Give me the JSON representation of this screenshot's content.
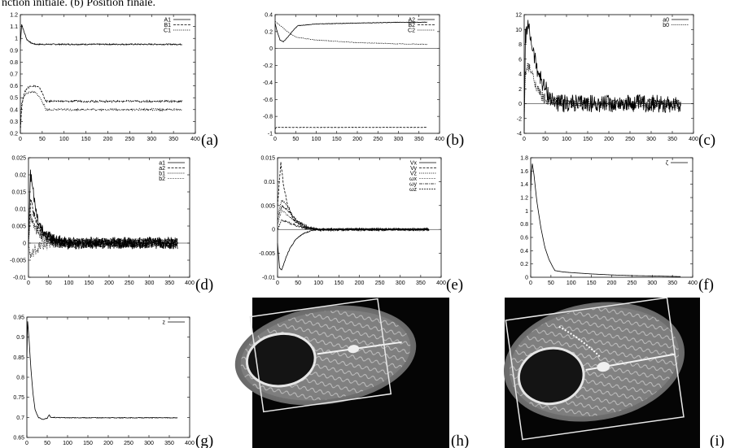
{
  "caption": "nction initiale. (b) Position finale.",
  "chart_data": [
    {
      "panel": "(a)",
      "type": "line",
      "xlim": [
        0,
        400
      ],
      "ylim": [
        0.2,
        1.2
      ],
      "xticks": [
        "0",
        "50",
        "100",
        "150",
        "200",
        "250",
        "300",
        "350",
        "400"
      ],
      "yticks": [
        "0.2",
        "0.3",
        "0.4",
        "0.5",
        "0.6",
        "0.7",
        "0.8",
        "0.9",
        "1",
        "1.1",
        "1.2"
      ],
      "legend": "top-right",
      "zero_line": false,
      "series": [
        {
          "name": "A1",
          "dash": "",
          "points": [
            [
              0,
              0.95
            ],
            [
              3,
              1.12
            ],
            [
              8,
              1.06
            ],
            [
              15,
              0.99
            ],
            [
              25,
              0.96
            ],
            [
              35,
              0.95
            ],
            [
              50,
              0.95
            ],
            [
              60,
              0.95
            ],
            [
              100,
              0.95
            ],
            [
              200,
              0.95
            ],
            [
              300,
              0.95
            ],
            [
              370,
              0.95
            ]
          ],
          "noise": 0.005
        },
        {
          "name": "B1",
          "dash": "3,1.5",
          "points": [
            [
              0,
              0.22
            ],
            [
              3,
              0.42
            ],
            [
              8,
              0.53
            ],
            [
              15,
              0.58
            ],
            [
              25,
              0.6
            ],
            [
              35,
              0.6
            ],
            [
              45,
              0.58
            ],
            [
              55,
              0.5
            ],
            [
              58,
              0.47
            ],
            [
              100,
              0.47
            ],
            [
              200,
              0.47
            ],
            [
              300,
              0.47
            ],
            [
              370,
              0.47
            ]
          ],
          "noise": 0.008
        },
        {
          "name": "C1",
          "dash": "1.2,1.2",
          "points": [
            [
              0,
              0.25
            ],
            [
              3,
              0.45
            ],
            [
              8,
              0.51
            ],
            [
              15,
              0.54
            ],
            [
              25,
              0.55
            ],
            [
              35,
              0.54
            ],
            [
              45,
              0.5
            ],
            [
              55,
              0.43
            ],
            [
              58,
              0.4
            ],
            [
              100,
              0.4
            ],
            [
              200,
              0.4
            ],
            [
              300,
              0.4
            ],
            [
              370,
              0.4
            ]
          ],
          "noise": 0.008
        }
      ]
    },
    {
      "panel": "(b)",
      "type": "line",
      "xlim": [
        0,
        400
      ],
      "ylim": [
        -1,
        0.4
      ],
      "xticks": [
        "0",
        "50",
        "100",
        "150",
        "200",
        "250",
        "300",
        "350",
        "400"
      ],
      "yticks": [
        "-1",
        "-0.8",
        "-0.6",
        "-0.4",
        "-0.2",
        "0",
        "0.2",
        "0.4"
      ],
      "legend": "top-right",
      "zero_line": true,
      "series": [
        {
          "name": "A2",
          "dash": "",
          "points": [
            [
              0,
              0.3
            ],
            [
              5,
              0.2
            ],
            [
              12,
              0.1
            ],
            [
              20,
              0.08
            ],
            [
              30,
              0.13
            ],
            [
              45,
              0.22
            ],
            [
              55,
              0.27
            ],
            [
              100,
              0.29
            ],
            [
              200,
              0.3
            ],
            [
              300,
              0.31
            ],
            [
              370,
              0.31
            ]
          ],
          "noise": 0.003
        },
        {
          "name": "B2",
          "dash": "3,1.5",
          "points": [
            [
              0,
              -0.95
            ],
            [
              3,
              -0.93
            ],
            [
              50,
              -0.93
            ],
            [
              100,
              -0.93
            ],
            [
              200,
              -0.93
            ],
            [
              300,
              -0.93
            ],
            [
              370,
              -0.93
            ]
          ],
          "noise": 0.002
        },
        {
          "name": "C2",
          "dash": "1.2,1.2",
          "points": [
            [
              0,
              0.32
            ],
            [
              5,
              0.3
            ],
            [
              15,
              0.26
            ],
            [
              30,
              0.2
            ],
            [
              45,
              0.15
            ],
            [
              55,
              0.13
            ],
            [
              100,
              0.1
            ],
            [
              200,
              0.07
            ],
            [
              300,
              0.055
            ],
            [
              370,
              0.05
            ]
          ],
          "noise": 0.003
        }
      ]
    },
    {
      "panel": "(c)",
      "type": "line",
      "xlim": [
        0,
        400
      ],
      "ylim": [
        -4,
        12
      ],
      "xticks": [
        "0",
        "50",
        "100",
        "150",
        "200",
        "250",
        "300",
        "350",
        "400"
      ],
      "yticks": [
        "-4",
        "-2",
        "0",
        "2",
        "4",
        "6",
        "8",
        "10",
        "12"
      ],
      "legend": "top-right",
      "zero_line": true,
      "series": [
        {
          "name": "a0",
          "dash": "",
          "points": [
            [
              0,
              -3
            ],
            [
              3,
              9
            ],
            [
              8,
              10.5
            ],
            [
              15,
              9
            ],
            [
              25,
              6
            ],
            [
              35,
              4
            ],
            [
              45,
              2.5
            ],
            [
              55,
              1.5
            ],
            [
              65,
              0.5
            ],
            [
              80,
              0.1
            ],
            [
              100,
              0
            ],
            [
              200,
              0
            ],
            [
              300,
              0
            ],
            [
              370,
              0
            ]
          ],
          "noise": 1.2
        },
        {
          "name": "b0",
          "dash": "1.2,1.2",
          "points": [
            [
              0,
              -2
            ],
            [
              3,
              4
            ],
            [
              8,
              5
            ],
            [
              15,
              4.5
            ],
            [
              25,
              3
            ],
            [
              35,
              1.5
            ],
            [
              45,
              0.8
            ],
            [
              60,
              0.3
            ],
            [
              100,
              0
            ],
            [
              200,
              0
            ],
            [
              370,
              0
            ]
          ],
          "noise": 0.7
        }
      ]
    },
    {
      "panel": "(d)",
      "type": "line",
      "xlim": [
        0,
        400
      ],
      "ylim": [
        -0.01,
        0.025
      ],
      "xticks": [
        "0",
        "50",
        "100",
        "150",
        "200",
        "250",
        "300",
        "350",
        "400"
      ],
      "yticks": [
        "-0.01",
        "-0.005",
        "0",
        "0.005",
        "0.01",
        "0.015",
        "0.02",
        "0.025"
      ],
      "legend": "top-right",
      "zero_line": true,
      "series": [
        {
          "name": "a1",
          "dash": "",
          "points": [
            [
              0,
              0
            ],
            [
              5,
              0.02
            ],
            [
              10,
              0.018
            ],
            [
              15,
              0.012
            ],
            [
              25,
              0.006
            ],
            [
              40,
              0.003
            ],
            [
              60,
              0.001
            ],
            [
              100,
              0
            ],
            [
              200,
              0
            ],
            [
              370,
              0
            ]
          ],
          "noise": 0.0018
        },
        {
          "name": "a2",
          "dash": "3,1.5",
          "points": [
            [
              0,
              0
            ],
            [
              5,
              0.012
            ],
            [
              15,
              0.008
            ],
            [
              30,
              0.003
            ],
            [
              60,
              0.001
            ],
            [
              100,
              0
            ],
            [
              370,
              0
            ]
          ],
          "noise": 0.0015
        },
        {
          "name": "b1",
          "dash": "1.2,1.2",
          "points": [
            [
              0,
              0
            ],
            [
              5,
              0.008
            ],
            [
              15,
              0.005
            ],
            [
              30,
              0.002
            ],
            [
              60,
              0
            ],
            [
              370,
              0
            ]
          ],
          "noise": 0.0015
        },
        {
          "name": "b2",
          "dash": "0.6,0.9",
          "points": [
            [
              0,
              0
            ],
            [
              5,
              -0.004
            ],
            [
              15,
              -0.002
            ],
            [
              30,
              -0.001
            ],
            [
              60,
              0
            ],
            [
              370,
              0
            ]
          ],
          "noise": 0.0015
        }
      ]
    },
    {
      "panel": "(e)",
      "type": "line",
      "xlim": [
        0,
        400
      ],
      "ylim": [
        -0.01,
        0.015
      ],
      "xticks": [
        "0",
        "50",
        "100",
        "150",
        "200",
        "250",
        "300",
        "350",
        "400"
      ],
      "yticks": [
        "-0.01",
        "-0.005",
        "0",
        "0.005",
        "0.01",
        "0.015"
      ],
      "legend": "top-right",
      "zero_line": true,
      "series": [
        {
          "name": "Vx",
          "dash": "",
          "points": [
            [
              0,
              -0.003
            ],
            [
              5,
              -0.008
            ],
            [
              10,
              -0.0085
            ],
            [
              20,
              -0.006
            ],
            [
              30,
              -0.004
            ],
            [
              45,
              -0.002
            ],
            [
              60,
              -0.001
            ],
            [
              80,
              -0.0003
            ],
            [
              100,
              0
            ],
            [
              370,
              0
            ]
          ],
          "noise": 0.0001
        },
        {
          "name": "Vy",
          "dash": "3,1.5",
          "points": [
            [
              0,
              0.005
            ],
            [
              8,
              0.014
            ],
            [
              15,
              0.009
            ],
            [
              25,
              0.005
            ],
            [
              40,
              0.002
            ],
            [
              60,
              0.0005
            ],
            [
              100,
              0
            ],
            [
              370,
              0
            ]
          ],
          "noise": 0.0003
        },
        {
          "name": "Vz",
          "dash": "1.2,1.2",
          "points": [
            [
              0,
              0.003
            ],
            [
              10,
              0.006
            ],
            [
              20,
              0.0055
            ],
            [
              35,
              0.003
            ],
            [
              50,
              0.0015
            ],
            [
              80,
              0.0003
            ],
            [
              100,
              0
            ],
            [
              370,
              0
            ]
          ],
          "noise": 0.0002
        },
        {
          "name": "ωx",
          "dash": "0.6,0.9",
          "points": [
            [
              0,
              0.001
            ],
            [
              10,
              0.004
            ],
            [
              25,
              0.003
            ],
            [
              45,
              0.0015
            ],
            [
              70,
              0.0003
            ],
            [
              100,
              0
            ],
            [
              370,
              0
            ]
          ],
          "noise": 0.0002
        },
        {
          "name": "ωy",
          "dash": "4,1,1,1",
          "points": [
            [
              0,
              0.002
            ],
            [
              10,
              0.005
            ],
            [
              25,
              0.004
            ],
            [
              45,
              0.002
            ],
            [
              70,
              0.0005
            ],
            [
              100,
              0
            ],
            [
              370,
              0
            ]
          ],
          "noise": 0.0002
        },
        {
          "name": "ωz",
          "dash": "2,1",
          "points": [
            [
              0,
              0
            ],
            [
              10,
              0.002
            ],
            [
              25,
              0.0015
            ],
            [
              45,
              0.0008
            ],
            [
              70,
              0.0002
            ],
            [
              100,
              0
            ],
            [
              370,
              0
            ]
          ],
          "noise": 0.0002
        }
      ]
    },
    {
      "panel": "(f)",
      "type": "line",
      "xlim": [
        0,
        400
      ],
      "ylim": [
        0,
        1.8
      ],
      "xticks": [
        "0",
        "50",
        "100",
        "150",
        "200",
        "250",
        "300",
        "350",
        "400"
      ],
      "yticks": [
        "0",
        "0.2",
        "0.4",
        "0.6",
        "0.8",
        "1",
        "1.2",
        "1.4",
        "1.6",
        "1.8"
      ],
      "legend": "top-right",
      "zero_line": false,
      "series": [
        {
          "name": "ζ",
          "dash": "",
          "points": [
            [
              0,
              1.3
            ],
            [
              3,
              1.75
            ],
            [
              8,
              1.55
            ],
            [
              15,
              1.15
            ],
            [
              25,
              0.75
            ],
            [
              35,
              0.45
            ],
            [
              45,
              0.27
            ],
            [
              55,
              0.15
            ],
            [
              60,
              0.1
            ],
            [
              80,
              0.08
            ],
            [
              100,
              0.07
            ],
            [
              150,
              0.05
            ],
            [
              200,
              0.035
            ],
            [
              250,
              0.025
            ],
            [
              300,
              0.02
            ],
            [
              370,
              0.01
            ]
          ],
          "noise": 0
        }
      ]
    },
    {
      "panel": "(g)",
      "type": "line",
      "xlim": [
        0,
        400
      ],
      "ylim": [
        0.65,
        0.95
      ],
      "xticks": [
        "0",
        "50",
        "100",
        "150",
        "200",
        "250",
        "300",
        "350",
        "400"
      ],
      "yticks": [
        "0.65",
        "0.7",
        "0.75",
        "0.8",
        "0.85",
        "0.9",
        "0.95"
      ],
      "legend": "top-right",
      "zero_line": false,
      "series": [
        {
          "name": "z",
          "dash": "",
          "points": [
            [
              0,
              0.85
            ],
            [
              2,
              0.94
            ],
            [
              5,
              0.9
            ],
            [
              10,
              0.82
            ],
            [
              15,
              0.76
            ],
            [
              20,
              0.72
            ],
            [
              28,
              0.7
            ],
            [
              40,
              0.695
            ],
            [
              50,
              0.698
            ],
            [
              55,
              0.707
            ],
            [
              58,
              0.7
            ],
            [
              100,
              0.699
            ],
            [
              200,
              0.699
            ],
            [
              300,
              0.699
            ],
            [
              370,
              0.699
            ]
          ],
          "noise": 0.0008
        }
      ]
    }
  ],
  "panels_extra": [
    {
      "panel": "(h)",
      "type": "image"
    },
    {
      "panel": "(i)",
      "type": "image"
    }
  ]
}
